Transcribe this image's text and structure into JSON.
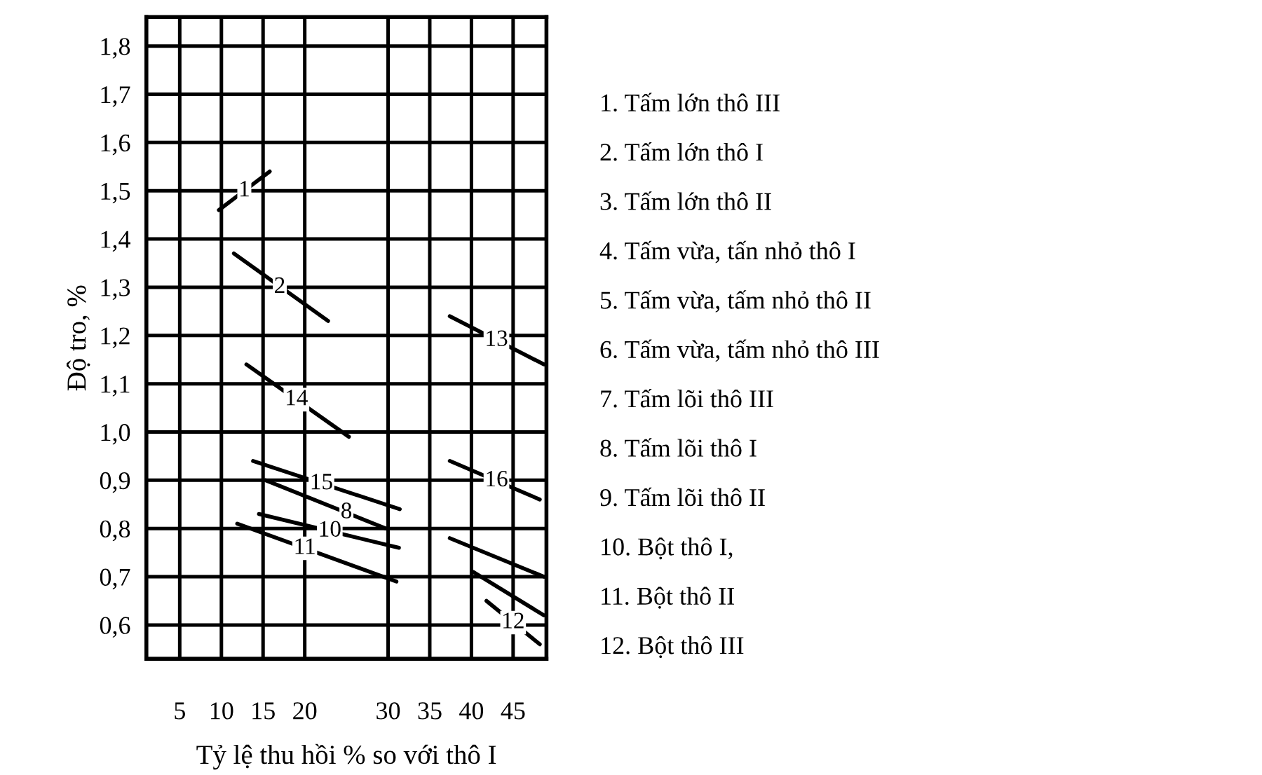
{
  "chart_data": {
    "type": "line",
    "xlabel": "Tỷ lệ thu hồi % so với thô I",
    "ylabel": "Độ tro, %",
    "xlim": [
      1,
      49
    ],
    "xticks": [
      5,
      10,
      15,
      20,
      30,
      35,
      40,
      45
    ],
    "ylim": [
      0.53,
      1.86
    ],
    "yticks": [
      {
        "value": 0.6,
        "label": "0,6"
      },
      {
        "value": 0.7,
        "label": "0,7"
      },
      {
        "value": 0.8,
        "label": "0,8"
      },
      {
        "value": 0.9,
        "label": "0,9"
      },
      {
        "value": 1.0,
        "label": "1,0"
      },
      {
        "value": 1.1,
        "label": "1,1"
      },
      {
        "value": 1.2,
        "label": "1,2"
      },
      {
        "value": 1.3,
        "label": "1,3"
      },
      {
        "value": 1.4,
        "label": "1,4"
      },
      {
        "value": 1.5,
        "label": "1,5"
      },
      {
        "value": 1.6,
        "label": "1,6"
      },
      {
        "value": 1.7,
        "label": "1,7"
      },
      {
        "value": 1.8,
        "label": "1,8"
      }
    ],
    "grid": true,
    "legend": false,
    "series": [
      {
        "color": "#000000",
        "x": [
          9.7,
          15.8
        ],
        "values": [
          1.46,
          1.54
        ]
      },
      {
        "color": "#000000",
        "x": [
          11.5,
          22.8
        ],
        "values": [
          1.37,
          1.23
        ]
      },
      {
        "color": "#000000",
        "x": [
          13,
          25.3
        ],
        "values": [
          1.14,
          0.99
        ]
      },
      {
        "color": "#000000",
        "x": [
          13.8,
          31.4
        ],
        "values": [
          0.94,
          0.84
        ]
      },
      {
        "color": "#000000",
        "x": [
          15.3,
          29.7
        ],
        "values": [
          0.9,
          0.8
        ]
      },
      {
        "color": "#000000",
        "x": [
          14.5,
          31.3
        ],
        "values": [
          0.83,
          0.76
        ]
      },
      {
        "color": "#000000",
        "x": [
          11.9,
          31
        ],
        "values": [
          0.81,
          0.69
        ]
      },
      {
        "color": "#000000",
        "x": [
          37.4,
          48.7
        ],
        "values": [
          1.24,
          1.14
        ]
      },
      {
        "color": "#000000",
        "x": [
          37.4,
          48.2
        ],
        "values": [
          0.94,
          0.86
        ]
      },
      {
        "color": "#000000",
        "x": [
          37.4,
          48.7
        ],
        "values": [
          0.78,
          0.7
        ]
      },
      {
        "color": "#000000",
        "x": [
          40.2,
          48.7
        ],
        "values": [
          0.71,
          0.62
        ]
      },
      {
        "color": "#000000",
        "x": [
          41.8,
          48.2
        ],
        "values": [
          0.65,
          0.56
        ]
      }
    ],
    "annotations": [
      {
        "text": "1",
        "x": 12.75,
        "y": 1.5
      },
      {
        "text": "2",
        "x": 17,
        "y": 1.3
      },
      {
        "text": "14",
        "x": 19,
        "y": 1.067
      },
      {
        "text": "15",
        "x": 22,
        "y": 0.893
      },
      {
        "text": "8",
        "x": 25,
        "y": 0.833
      },
      {
        "text": "10",
        "x": 23,
        "y": 0.795
      },
      {
        "text": "11",
        "x": 20,
        "y": 0.759
      },
      {
        "text": "13",
        "x": 43,
        "y": 1.19
      },
      {
        "text": "16",
        "x": 43,
        "y": 0.899
      },
      {
        "text": "12",
        "x": 45,
        "y": 0.605
      },
      "1. Tấm lớn thô III",
      "2. Tấm lớn thô I",
      "3. Tấm lớn thô II",
      "4. Tấm vừa, tấn nhỏ thô I",
      "5. Tấm vừa, tấm nhỏ thô II",
      "6. Tấm vừa, tấm nhỏ thô III",
      "7. Tấm lõi thô III",
      "8. Tấm lõi thô I",
      "9. Tấm lõi thô II",
      "10. Bột thô I,",
      "11. Bột thô II",
      "12. Bột thô III"
    ]
  }
}
